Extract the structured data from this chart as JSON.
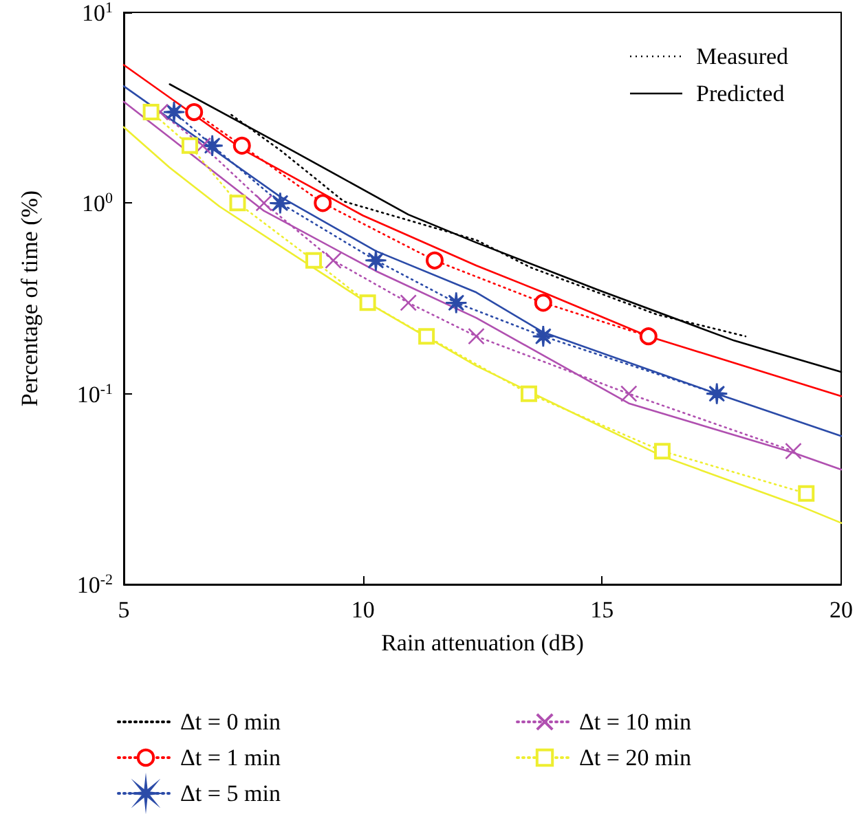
{
  "chart_data": {
    "type": "line",
    "xlabel": "Rain attenuation (dB)",
    "ylabel": "Percentage of time (%)",
    "log": "y",
    "legend": "bottom",
    "xlim": [
      5,
      20
    ],
    "xticks": [
      5,
      10,
      15,
      20
    ],
    "ylim": [
      0.01,
      10
    ],
    "yticks": [
      {
        "value": 0.01,
        "label": "10$^{-2}$"
      },
      {
        "value": 0.1,
        "label": "10$^{-1}$"
      },
      {
        "value": 1,
        "label": "10$^{0}$"
      },
      {
        "value": 10,
        "label": "10$^{1}$"
      }
    ],
    "annotations": [
      "Measured",
      "Predicted"
    ],
    "series": [
      {
        "name": "Δt = 0 min",
        "color": "#000000",
        "line_style": "dotted",
        "marker": "none",
        "x": [
          7.25,
          8.3,
          9.6,
          12.37,
          13.5,
          16.15,
          18.0
        ],
        "values": [
          2.9,
          1.87,
          1.02,
          0.64,
          0.46,
          0.26,
          0.2
        ]
      },
      {
        "name": "Δt = 1 min",
        "color": "#ff0000",
        "line_style": "dotted",
        "marker": "circle",
        "x": [
          6.47,
          7.47,
          9.16,
          11.5,
          13.77,
          15.97
        ],
        "values": [
          3,
          2,
          1,
          0.5,
          0.3,
          0.2
        ]
      },
      {
        "name": "Δt = 5 min",
        "color": "#2b4ba8",
        "line_style": "dotted",
        "marker": "star",
        "x": [
          6.05,
          6.85,
          8.27,
          10.27,
          11.95,
          13.77,
          17.4
        ],
        "values": [
          3,
          2,
          1,
          0.5,
          0.3,
          0.2,
          0.1
        ]
      },
      {
        "name": "Δt = 10 min",
        "color": "#b050b0",
        "line_style": "dotted",
        "marker": "cross",
        "x": [
          5.76,
          6.65,
          7.93,
          9.38,
          10.95,
          12.37,
          15.56,
          19.0
        ],
        "values": [
          3,
          2,
          1,
          0.5,
          0.3,
          0.2,
          0.1,
          0.05
        ]
      },
      {
        "name": "Δt = 20 min",
        "color": "#eeee30",
        "line_style": "dotted",
        "marker": "square",
        "x": [
          5.57,
          6.38,
          7.38,
          8.97,
          10.1,
          11.33,
          13.47,
          16.26,
          19.27
        ],
        "values": [
          3,
          2,
          1,
          0.5,
          0.3,
          0.2,
          0.1,
          0.05,
          0.03
        ]
      },
      {
        "color": "#000000",
        "line_style": "solid",
        "marker": "none",
        "x": [
          5.96,
          8.5,
          10.95,
          12.37,
          14.92,
          17.76,
          20
        ],
        "values": [
          4.2,
          1.9,
          0.87,
          0.62,
          0.35,
          0.19,
          0.13
        ]
      },
      {
        "color": "#ff0000",
        "line_style": "solid",
        "marker": "none",
        "x": [
          5,
          7.5,
          10,
          12.37,
          13.77,
          15.97,
          20
        ],
        "values": [
          5.3,
          1.9,
          0.86,
          0.47,
          0.34,
          0.2,
          0.097
        ]
      },
      {
        "color": "#2b4ba8",
        "line_style": "solid",
        "marker": "none",
        "x": [
          5,
          8.27,
          10.27,
          12.37,
          13.77,
          17.4,
          20
        ],
        "values": [
          4.1,
          1.08,
          0.56,
          0.34,
          0.21,
          0.1,
          0.06
        ]
      },
      {
        "color": "#b050b0",
        "line_style": "solid",
        "marker": "none",
        "x": [
          5,
          7.93,
          10.27,
          12.37,
          15.56,
          19.0,
          20
        ],
        "values": [
          3.4,
          0.91,
          0.44,
          0.25,
          0.089,
          0.049,
          0.04
        ]
      },
      {
        "color": "#eeee30",
        "line_style": "solid",
        "marker": "none",
        "x": [
          5,
          5.95,
          7.0,
          10.0,
          12.37,
          16.26,
          19.1,
          20
        ],
        "values": [
          2.5,
          1.54,
          0.96,
          0.31,
          0.14,
          0.047,
          0.026,
          0.021
        ]
      }
    ]
  }
}
